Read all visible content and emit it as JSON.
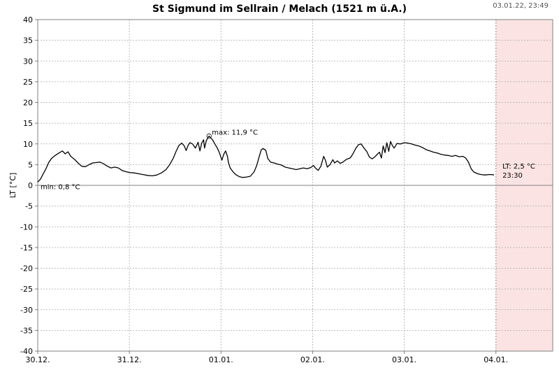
{
  "chart_data": {
    "type": "line",
    "title": "St Sigmund im Sellrain / Melach (1521 m ü.A.)",
    "timestamp": "03.01.22, 23:49",
    "ylabel": "LT [°C]",
    "xlabel": "",
    "ylim": [
      -40,
      40
    ],
    "yticks": [
      40,
      35,
      30,
      25,
      20,
      15,
      10,
      5,
      0,
      -5,
      -10,
      -15,
      -20,
      -25,
      -30,
      -35,
      -40
    ],
    "xlim_days": [
      0,
      5.62
    ],
    "xticks": [
      {
        "label": "30.12.",
        "day": 0
      },
      {
        "label": "31.12.",
        "day": 1
      },
      {
        "label": "01.01.",
        "day": 2
      },
      {
        "label": "02.01.",
        "day": 3
      },
      {
        "label": "03.01.",
        "day": 4
      },
      {
        "label": "04.01.",
        "day": 5
      }
    ],
    "forecast_region_start_day": 5,
    "grid": true,
    "series": [
      {
        "name": "LT",
        "color": "#000000",
        "points": [
          [
            0.0,
            0.8
          ],
          [
            0.03,
            1.5
          ],
          [
            0.06,
            2.8
          ],
          [
            0.09,
            4.0
          ],
          [
            0.12,
            5.5
          ],
          [
            0.15,
            6.5
          ],
          [
            0.19,
            7.2
          ],
          [
            0.23,
            7.8
          ],
          [
            0.27,
            8.3
          ],
          [
            0.3,
            7.6
          ],
          [
            0.33,
            8.1
          ],
          [
            0.36,
            7.0
          ],
          [
            0.4,
            6.3
          ],
          [
            0.44,
            5.4
          ],
          [
            0.48,
            4.6
          ],
          [
            0.52,
            4.5
          ],
          [
            0.56,
            5.0
          ],
          [
            0.6,
            5.4
          ],
          [
            0.64,
            5.5
          ],
          [
            0.68,
            5.6
          ],
          [
            0.72,
            5.2
          ],
          [
            0.76,
            4.6
          ],
          [
            0.8,
            4.2
          ],
          [
            0.84,
            4.4
          ],
          [
            0.88,
            4.2
          ],
          [
            0.92,
            3.6
          ],
          [
            0.96,
            3.3
          ],
          [
            1.0,
            3.1
          ],
          [
            1.05,
            3.0
          ],
          [
            1.1,
            2.8
          ],
          [
            1.15,
            2.6
          ],
          [
            1.2,
            2.4
          ],
          [
            1.25,
            2.3
          ],
          [
            1.3,
            2.5
          ],
          [
            1.35,
            3.0
          ],
          [
            1.4,
            3.8
          ],
          [
            1.44,
            5.0
          ],
          [
            1.48,
            6.6
          ],
          [
            1.51,
            8.2
          ],
          [
            1.54,
            9.6
          ],
          [
            1.57,
            10.2
          ],
          [
            1.6,
            9.5
          ],
          [
            1.62,
            8.4
          ],
          [
            1.64,
            9.6
          ],
          [
            1.66,
            10.3
          ],
          [
            1.69,
            10.0
          ],
          [
            1.72,
            9.0
          ],
          [
            1.75,
            10.4
          ],
          [
            1.77,
            8.3
          ],
          [
            1.79,
            10.2
          ],
          [
            1.81,
            11.0
          ],
          [
            1.82,
            9.0
          ],
          [
            1.84,
            10.8
          ],
          [
            1.86,
            11.6
          ],
          [
            1.87,
            11.9
          ],
          [
            1.89,
            11.4
          ],
          [
            1.91,
            10.9
          ],
          [
            1.93,
            10.1
          ],
          [
            1.96,
            9.0
          ],
          [
            1.98,
            8.0
          ],
          [
            2.01,
            6.1
          ],
          [
            2.03,
            7.5
          ],
          [
            2.05,
            8.3
          ],
          [
            2.07,
            7.0
          ],
          [
            2.08,
            5.6
          ],
          [
            2.1,
            4.2
          ],
          [
            2.13,
            3.3
          ],
          [
            2.16,
            2.6
          ],
          [
            2.2,
            2.1
          ],
          [
            2.24,
            1.9
          ],
          [
            2.28,
            2.0
          ],
          [
            2.32,
            2.2
          ],
          [
            2.36,
            3.2
          ],
          [
            2.39,
            4.8
          ],
          [
            2.42,
            7.2
          ],
          [
            2.44,
            8.6
          ],
          [
            2.46,
            8.9
          ],
          [
            2.49,
            8.4
          ],
          [
            2.51,
            6.5
          ],
          [
            2.54,
            5.6
          ],
          [
            2.58,
            5.4
          ],
          [
            2.62,
            5.1
          ],
          [
            2.66,
            4.9
          ],
          [
            2.7,
            4.4
          ],
          [
            2.74,
            4.2
          ],
          [
            2.78,
            4.0
          ],
          [
            2.82,
            3.8
          ],
          [
            2.86,
            4.0
          ],
          [
            2.9,
            4.2
          ],
          [
            2.94,
            4.0
          ],
          [
            2.98,
            4.3
          ],
          [
            3.01,
            4.8
          ],
          [
            3.03,
            4.2
          ],
          [
            3.06,
            3.6
          ],
          [
            3.09,
            4.6
          ],
          [
            3.12,
            7.0
          ],
          [
            3.14,
            6.0
          ],
          [
            3.16,
            4.4
          ],
          [
            3.19,
            5.0
          ],
          [
            3.22,
            6.2
          ],
          [
            3.24,
            5.4
          ],
          [
            3.27,
            5.9
          ],
          [
            3.3,
            5.3
          ],
          [
            3.33,
            5.6
          ],
          [
            3.37,
            6.3
          ],
          [
            3.41,
            6.6
          ],
          [
            3.44,
            7.6
          ],
          [
            3.47,
            8.9
          ],
          [
            3.5,
            9.8
          ],
          [
            3.53,
            10.0
          ],
          [
            3.56,
            9.0
          ],
          [
            3.59,
            8.2
          ],
          [
            3.62,
            6.8
          ],
          [
            3.65,
            6.4
          ],
          [
            3.68,
            6.9
          ],
          [
            3.71,
            7.6
          ],
          [
            3.73,
            8.0
          ],
          [
            3.75,
            6.6
          ],
          [
            3.77,
            9.5
          ],
          [
            3.79,
            7.9
          ],
          [
            3.81,
            10.3
          ],
          [
            3.83,
            8.2
          ],
          [
            3.85,
            10.6
          ],
          [
            3.87,
            9.6
          ],
          [
            3.89,
            9.0
          ],
          [
            3.92,
            10.1
          ],
          [
            3.96,
            10.0
          ],
          [
            4.0,
            10.3
          ],
          [
            4.04,
            10.2
          ],
          [
            4.08,
            10.0
          ],
          [
            4.12,
            9.7
          ],
          [
            4.16,
            9.5
          ],
          [
            4.2,
            9.1
          ],
          [
            4.24,
            8.6
          ],
          [
            4.28,
            8.3
          ],
          [
            4.32,
            8.0
          ],
          [
            4.36,
            7.8
          ],
          [
            4.4,
            7.5
          ],
          [
            4.44,
            7.3
          ],
          [
            4.48,
            7.2
          ],
          [
            4.52,
            7.0
          ],
          [
            4.56,
            7.2
          ],
          [
            4.6,
            6.9
          ],
          [
            4.64,
            7.0
          ],
          [
            4.67,
            6.6
          ],
          [
            4.7,
            5.6
          ],
          [
            4.73,
            4.0
          ],
          [
            4.76,
            3.2
          ],
          [
            4.8,
            2.8
          ],
          [
            4.84,
            2.6
          ],
          [
            4.88,
            2.5
          ],
          [
            4.92,
            2.6
          ],
          [
            4.96,
            2.6
          ],
          [
            4.98,
            2.5
          ]
        ]
      }
    ],
    "annotations": {
      "max": {
        "label": "max: 11,9 °C",
        "day": 1.87,
        "value": 11.9
      },
      "min": {
        "label": "min: 0,8 °C",
        "day": 0.0,
        "value": 0.8
      },
      "last": {
        "label": "LT: 2,5 °C",
        "time": "23:30",
        "day": 4.98,
        "value": 2.5
      }
    },
    "colors": {
      "line": "#000000",
      "grid": "#aaaaaa",
      "axis": "#808080",
      "forecast_fill": "#fbe3e3",
      "forecast_line": "#d66060"
    }
  }
}
